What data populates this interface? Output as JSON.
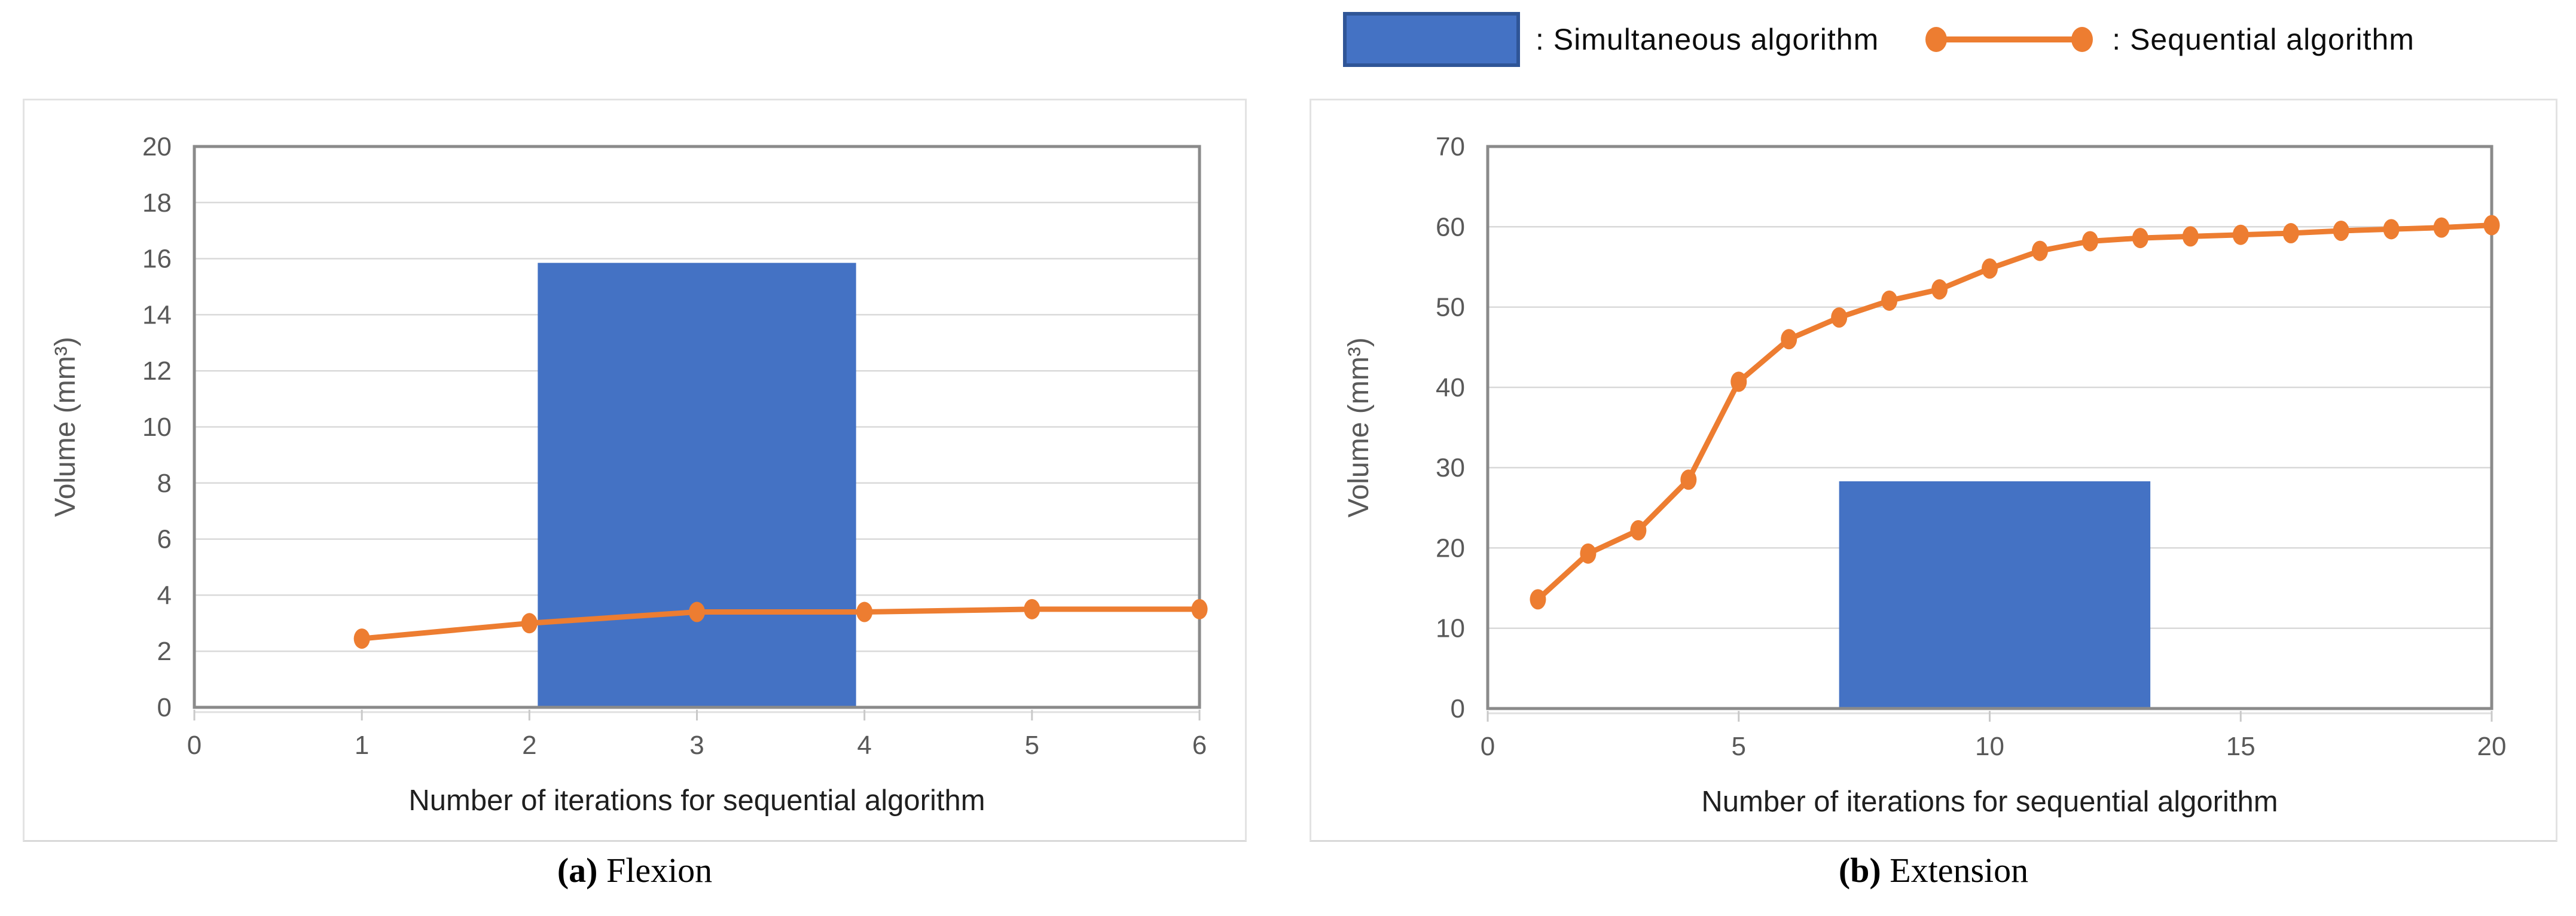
{
  "legend": {
    "items": [
      {
        "marker": "bar-swatch",
        "label": ": Simultaneous  algorithm",
        "color": "#4472C4",
        "border_color": "#2F5597"
      },
      {
        "marker": "line-with-dots",
        "label": ": Sequential  algorithm",
        "color": "#ED7D31"
      }
    ]
  },
  "colors": {
    "bar": "#4472C4",
    "bar_border": "#2F5597",
    "line": "#ED7D31",
    "axis": "#8a8a8a",
    "grid": "#d9d9d9",
    "tick_text": "#595959",
    "x_title_text": "#1f1f1f",
    "y_title_text": "#595959",
    "tick_mark": "#c9c9c9",
    "panel_border": "#e3e3e3"
  },
  "chart_data": [
    {
      "type": "combo",
      "caption": {
        "tag": "(a)",
        "label": "Flexion"
      },
      "xlabel": "Number of iterations for sequential algorithm",
      "ylabel": "Volume (mm³)",
      "xlim": [
        0,
        6
      ],
      "ylim": [
        0,
        20
      ],
      "x_ticks": [
        0,
        1,
        2,
        3,
        4,
        5,
        6
      ],
      "y_ticks": [
        0,
        2,
        4,
        6,
        8,
        10,
        12,
        14,
        16,
        18,
        20
      ],
      "grid": true,
      "legend_position": "top-right-shared",
      "series": [
        {
          "name": "Simultaneous algorithm",
          "type": "bar",
          "x_start": 2.05,
          "x_end": 3.95,
          "value": 15.85,
          "color": "#4472C4"
        },
        {
          "name": "Sequential algorithm",
          "type": "line",
          "x": [
            1,
            2,
            3,
            4,
            5,
            6
          ],
          "y": [
            2.45,
            3.0,
            3.4,
            3.4,
            3.5,
            3.5
          ],
          "color": "#ED7D31"
        }
      ]
    },
    {
      "type": "combo",
      "caption": {
        "tag": "(b)",
        "label": "Extension"
      },
      "xlabel": "Number of iterations for sequential algorithm",
      "ylabel": "Volume (mm³)",
      "xlim": [
        0,
        20
      ],
      "ylim": [
        0,
        70
      ],
      "x_ticks": [
        0,
        5,
        10,
        15,
        20
      ],
      "y_ticks": [
        0,
        10,
        20,
        30,
        40,
        50,
        60,
        70
      ],
      "grid": true,
      "legend_position": "top-right-shared",
      "series": [
        {
          "name": "Simultaneous algorithm",
          "type": "bar",
          "x_start": 7.0,
          "x_end": 13.2,
          "value": 28.3,
          "color": "#4472C4"
        },
        {
          "name": "Sequential algorithm",
          "type": "line",
          "x": [
            1,
            2,
            3,
            4,
            5,
            6,
            7,
            8,
            9,
            10,
            11,
            12,
            13,
            14,
            15,
            16,
            17,
            18,
            19,
            20
          ],
          "y": [
            13.6,
            19.3,
            22.2,
            28.5,
            40.7,
            46.0,
            48.7,
            50.8,
            52.2,
            54.8,
            57.0,
            58.2,
            58.6,
            58.8,
            59.0,
            59.2,
            59.5,
            59.7,
            59.9,
            60.2
          ],
          "color": "#ED7D31"
        }
      ]
    }
  ]
}
